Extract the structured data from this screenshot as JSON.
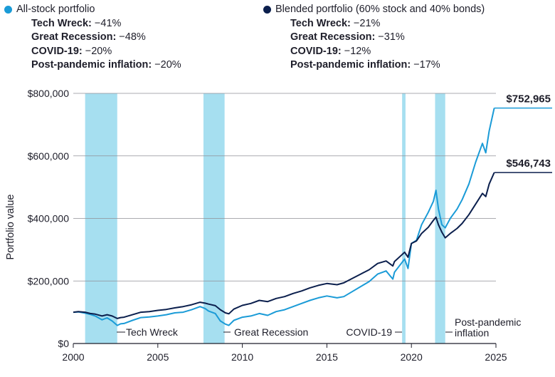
{
  "legend": [
    {
      "name": "All-stock portfolio",
      "color": "#1a9bd7",
      "rows": [
        {
          "label": "Tech Wreck:",
          "value": " −41%"
        },
        {
          "label": "Great Recession:",
          "value": " −48%"
        },
        {
          "label": "COVID-19:",
          "value": " −20%"
        },
        {
          "label": "Post-pandemic inflation:",
          "value": " −20%"
        }
      ]
    },
    {
      "name": "Blended portfolio (60% stock and 40% bonds)",
      "color": "#0b1f4d",
      "rows": [
        {
          "label": "Tech Wreck:",
          "value": " −21%"
        },
        {
          "label": "Great Recession:",
          "value": " −31%"
        },
        {
          "label": "COVID-19:",
          "value": " −12%"
        },
        {
          "label": "Post-pandemic inflation:",
          "value": " −17%"
        }
      ]
    }
  ],
  "chart_data": {
    "type": "line",
    "ylabel": "Portfolio value",
    "xlabel": "",
    "xlim": [
      2000,
      2025
    ],
    "ylim": [
      0,
      800000
    ],
    "x_ticks": [
      2000,
      2005,
      2010,
      2015,
      2020,
      2025
    ],
    "x_tick_labels": [
      "2000",
      "2005",
      "2010",
      "2015",
      "2020",
      "2025"
    ],
    "y_ticks": [
      0,
      200000,
      400000,
      600000,
      800000
    ],
    "y_tick_labels": [
      "$0",
      "$200,000",
      "$400,000",
      "$600,000",
      "$800,000"
    ],
    "grid": "horizontal",
    "shade_color": "#a6dff0",
    "shaded_periods": [
      {
        "label": "Tech Wreck",
        "start": 2000.7,
        "end": 2002.6
      },
      {
        "label": "Great Recession",
        "start": 2007.7,
        "end": 2008.95
      },
      {
        "label": "COVID-19",
        "start": 2019.45,
        "end": 2019.65
      },
      {
        "label": "Post-pandemic inflation",
        "start": 2021.4,
        "end": 2022.0
      }
    ],
    "series": [
      {
        "name": "All-stock portfolio",
        "color": "#1a9bd7",
        "end_label": "$752,965",
        "points": [
          [
            2000.0,
            100000
          ],
          [
            2000.3,
            101000
          ],
          [
            2000.7,
            97000
          ],
          [
            2001.0,
            93000
          ],
          [
            2001.3,
            88000
          ],
          [
            2001.7,
            76000
          ],
          [
            2002.0,
            82000
          ],
          [
            2002.3,
            72000
          ],
          [
            2002.6,
            58000
          ],
          [
            2002.8,
            63000
          ],
          [
            2003.0,
            64000
          ],
          [
            2003.5,
            74000
          ],
          [
            2004.0,
            83000
          ],
          [
            2004.5,
            85000
          ],
          [
            2005.0,
            88000
          ],
          [
            2005.5,
            92000
          ],
          [
            2006.0,
            98000
          ],
          [
            2006.5,
            100000
          ],
          [
            2007.0,
            108000
          ],
          [
            2007.5,
            118000
          ],
          [
            2007.8,
            112000
          ],
          [
            2008.0,
            104000
          ],
          [
            2008.4,
            96000
          ],
          [
            2008.7,
            72000
          ],
          [
            2009.0,
            62000
          ],
          [
            2009.2,
            58000
          ],
          [
            2009.5,
            74000
          ],
          [
            2010.0,
            84000
          ],
          [
            2010.5,
            88000
          ],
          [
            2011.0,
            96000
          ],
          [
            2011.5,
            90000
          ],
          [
            2012.0,
            102000
          ],
          [
            2012.5,
            108000
          ],
          [
            2013.0,
            118000
          ],
          [
            2013.5,
            128000
          ],
          [
            2014.0,
            138000
          ],
          [
            2014.5,
            146000
          ],
          [
            2015.0,
            152000
          ],
          [
            2015.6,
            146000
          ],
          [
            2016.0,
            150000
          ],
          [
            2016.5,
            166000
          ],
          [
            2017.0,
            182000
          ],
          [
            2017.5,
            198000
          ],
          [
            2018.0,
            222000
          ],
          [
            2018.5,
            232000
          ],
          [
            2018.9,
            206000
          ],
          [
            2019.0,
            228000
          ],
          [
            2019.4,
            256000
          ],
          [
            2019.6,
            270000
          ],
          [
            2019.8,
            240000
          ],
          [
            2020.0,
            320000
          ],
          [
            2020.3,
            330000
          ],
          [
            2020.6,
            380000
          ],
          [
            2021.0,
            420000
          ],
          [
            2021.3,
            455000
          ],
          [
            2021.45,
            490000
          ],
          [
            2021.6,
            430000
          ],
          [
            2021.8,
            380000
          ],
          [
            2022.0,
            370000
          ],
          [
            2022.3,
            400000
          ],
          [
            2022.7,
            430000
          ],
          [
            2023.0,
            460000
          ],
          [
            2023.4,
            510000
          ],
          [
            2023.8,
            580000
          ],
          [
            2024.2,
            640000
          ],
          [
            2024.4,
            610000
          ],
          [
            2024.6,
            680000
          ],
          [
            2024.9,
            752965
          ]
        ]
      },
      {
        "name": "Blended portfolio (60% stock and 40% bonds)",
        "color": "#0b1f4d",
        "end_label": "$546,743",
        "points": [
          [
            2000.0,
            100000
          ],
          [
            2000.3,
            102000
          ],
          [
            2000.7,
            100000
          ],
          [
            2001.0,
            96000
          ],
          [
            2001.3,
            94000
          ],
          [
            2001.7,
            88000
          ],
          [
            2002.0,
            92000
          ],
          [
            2002.3,
            88000
          ],
          [
            2002.6,
            80000
          ],
          [
            2002.8,
            83000
          ],
          [
            2003.0,
            84000
          ],
          [
            2003.5,
            92000
          ],
          [
            2004.0,
            100000
          ],
          [
            2004.5,
            102000
          ],
          [
            2005.0,
            106000
          ],
          [
            2005.5,
            109000
          ],
          [
            2006.0,
            114000
          ],
          [
            2006.5,
            118000
          ],
          [
            2007.0,
            124000
          ],
          [
            2007.5,
            132000
          ],
          [
            2007.8,
            129000
          ],
          [
            2008.0,
            126000
          ],
          [
            2008.4,
            121000
          ],
          [
            2008.7,
            108000
          ],
          [
            2009.0,
            98000
          ],
          [
            2009.2,
            95000
          ],
          [
            2009.5,
            110000
          ],
          [
            2010.0,
            122000
          ],
          [
            2010.5,
            128000
          ],
          [
            2011.0,
            138000
          ],
          [
            2011.5,
            134000
          ],
          [
            2012.0,
            144000
          ],
          [
            2012.5,
            150000
          ],
          [
            2013.0,
            160000
          ],
          [
            2013.5,
            168000
          ],
          [
            2014.0,
            178000
          ],
          [
            2014.5,
            186000
          ],
          [
            2015.0,
            192000
          ],
          [
            2015.6,
            188000
          ],
          [
            2016.0,
            194000
          ],
          [
            2016.5,
            208000
          ],
          [
            2017.0,
            222000
          ],
          [
            2017.5,
            236000
          ],
          [
            2018.0,
            256000
          ],
          [
            2018.5,
            264000
          ],
          [
            2018.9,
            248000
          ],
          [
            2019.0,
            262000
          ],
          [
            2019.4,
            282000
          ],
          [
            2019.6,
            292000
          ],
          [
            2019.8,
            276000
          ],
          [
            2020.0,
            320000
          ],
          [
            2020.3,
            328000
          ],
          [
            2020.6,
            352000
          ],
          [
            2021.0,
            372000
          ],
          [
            2021.3,
            394000
          ],
          [
            2021.45,
            404000
          ],
          [
            2021.6,
            380000
          ],
          [
            2021.8,
            356000
          ],
          [
            2022.0,
            338000
          ],
          [
            2022.3,
            352000
          ],
          [
            2022.7,
            368000
          ],
          [
            2023.0,
            384000
          ],
          [
            2023.4,
            412000
          ],
          [
            2023.8,
            446000
          ],
          [
            2024.2,
            480000
          ],
          [
            2024.4,
            470000
          ],
          [
            2024.6,
            510000
          ],
          [
            2024.9,
            546743
          ]
        ]
      }
    ]
  }
}
